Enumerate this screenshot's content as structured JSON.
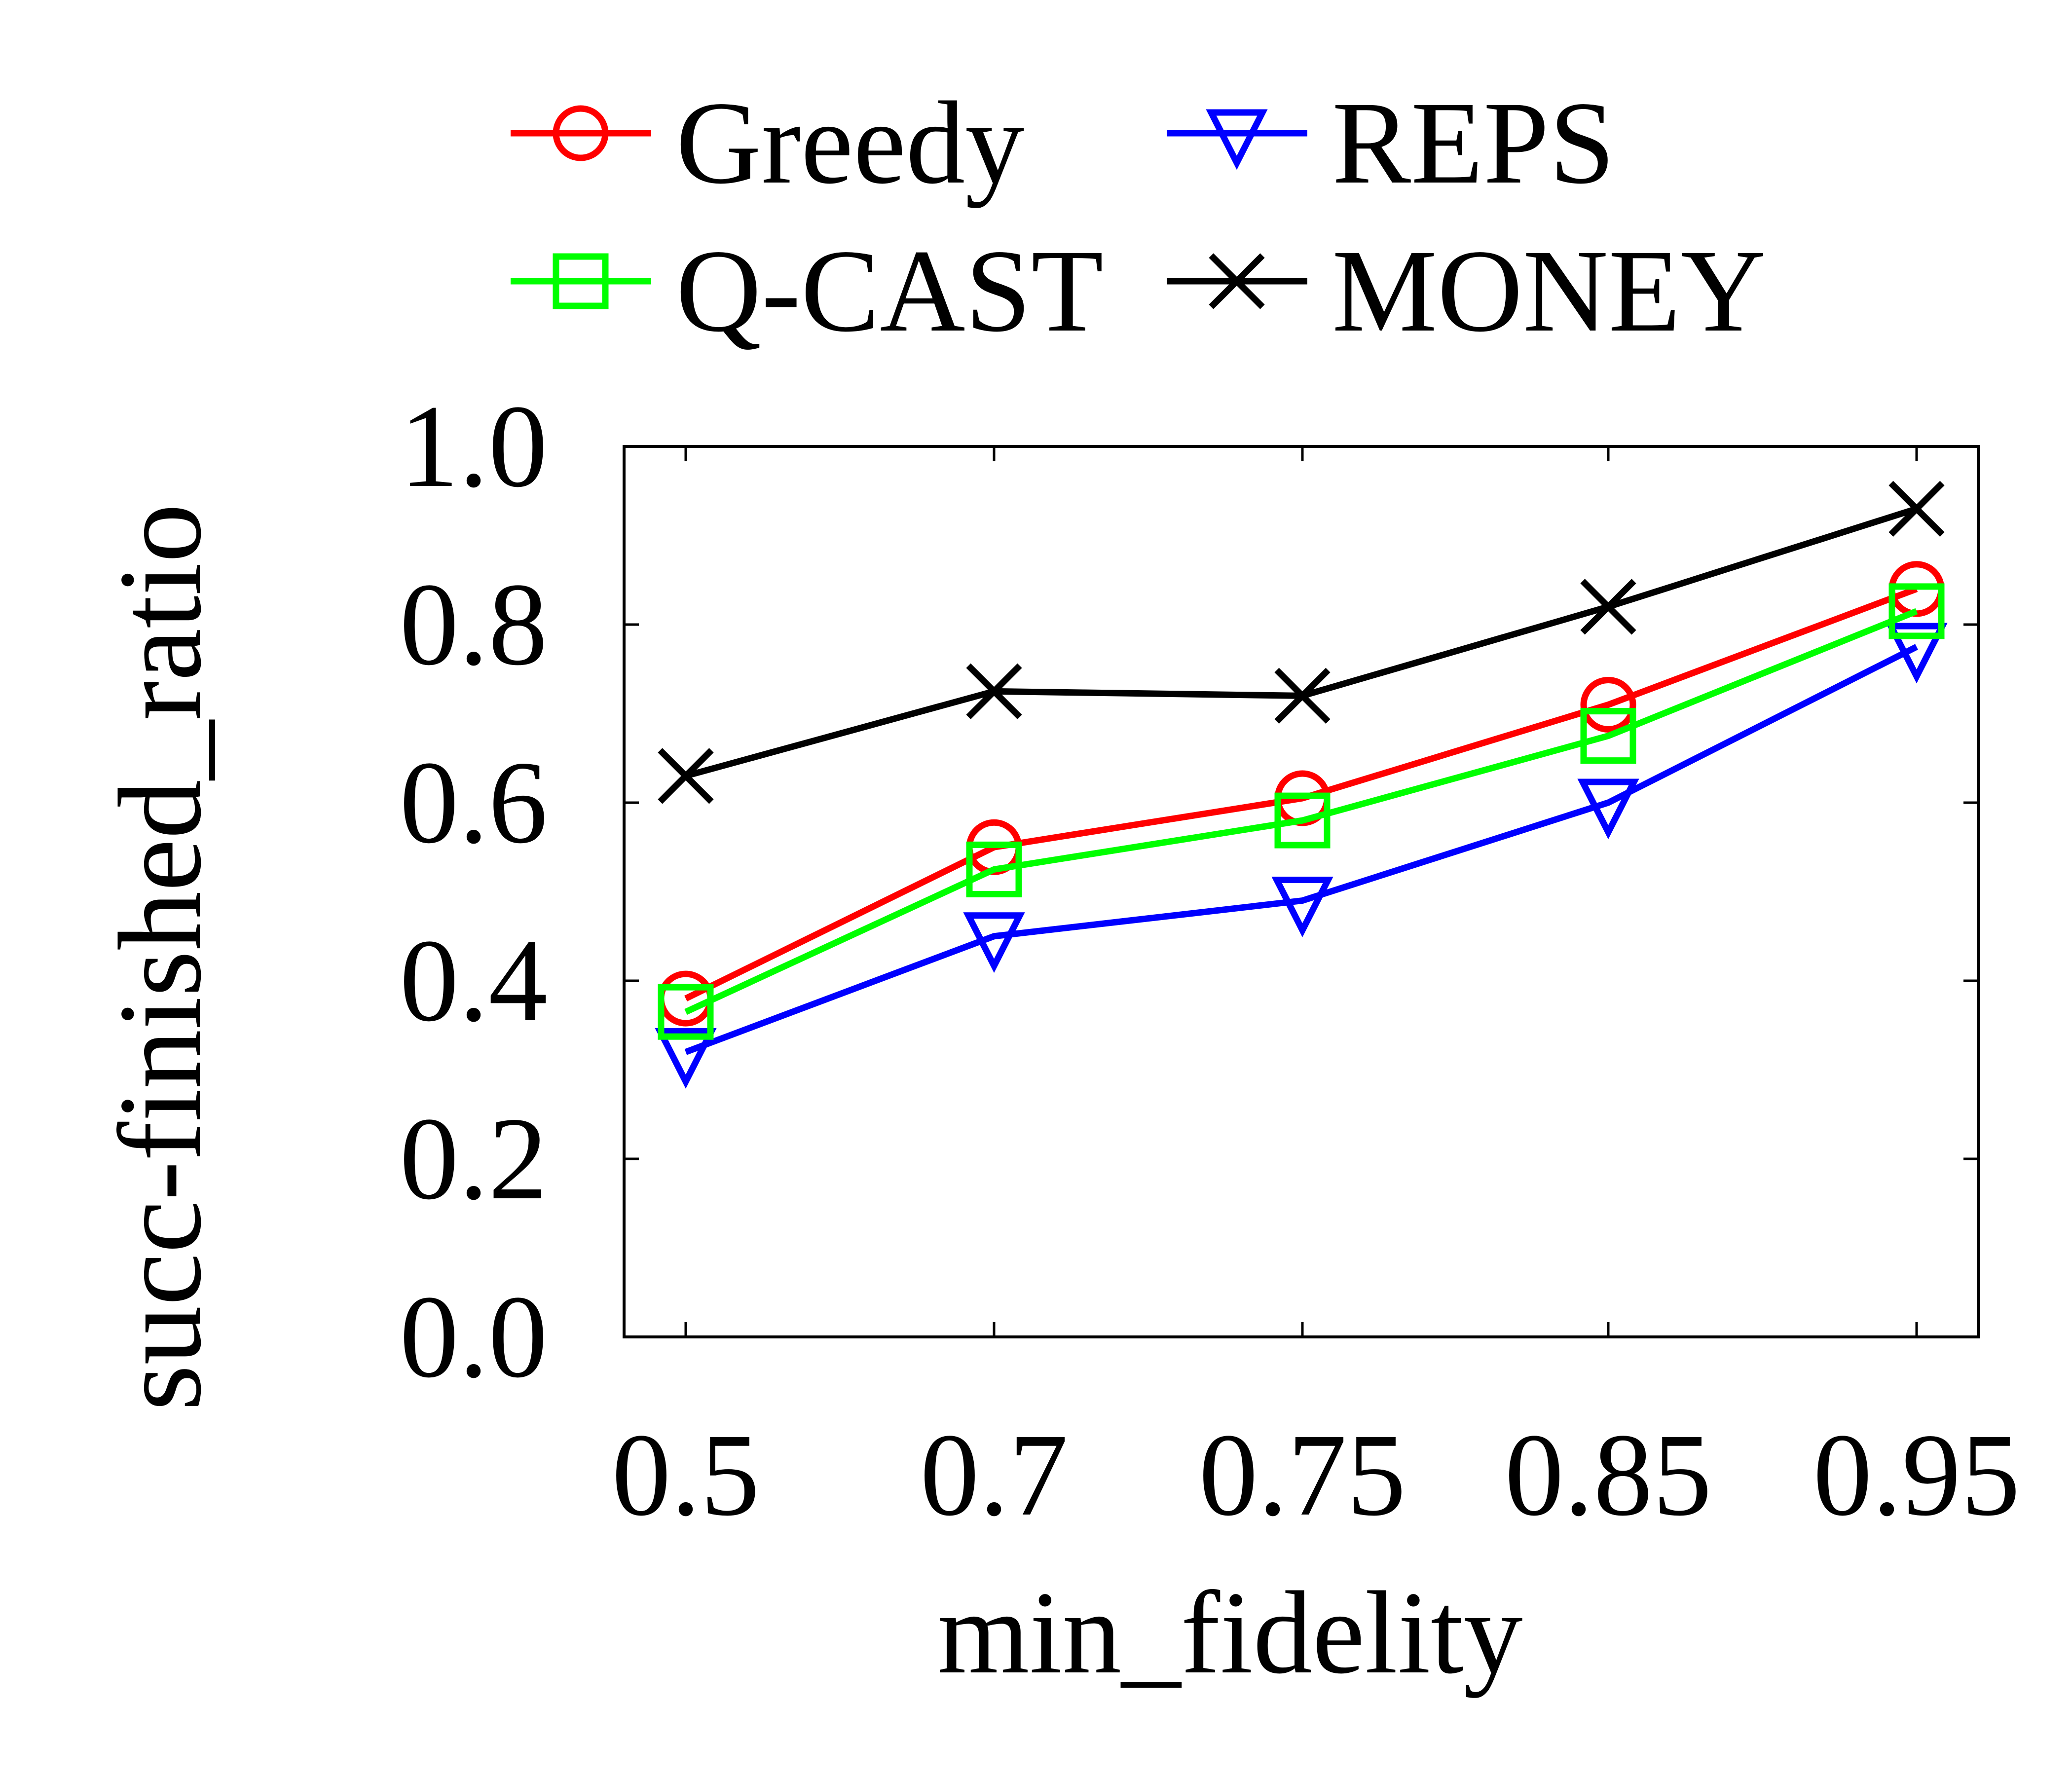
{
  "chart_data": {
    "type": "line",
    "xlabel": "min_fidelity",
    "ylabel": "succ-finished_ratio",
    "categories": [
      "0.5",
      "0.7",
      "0.75",
      "0.85",
      "0.95"
    ],
    "ylim": [
      0.0,
      1.0
    ],
    "yticks": [
      "0.0",
      "0.2",
      "0.4",
      "0.6",
      "0.8",
      "1.0"
    ],
    "grid": false,
    "legend_position": "top",
    "series": [
      {
        "name": "Greedy",
        "color": "#ff0000",
        "marker": "circle",
        "values": [
          0.38,
          0.55,
          0.605,
          0.71,
          0.84
        ]
      },
      {
        "name": "REPS",
        "color": "#0000ff",
        "marker": "triangle-down",
        "values": [
          0.32,
          0.45,
          0.49,
          0.6,
          0.775
        ]
      },
      {
        "name": "Q-CAST",
        "color": "#00ff00",
        "marker": "square",
        "values": [
          0.365,
          0.525,
          0.58,
          0.675,
          0.815
        ]
      },
      {
        "name": "MONEY",
        "color": "#000000",
        "marker": "x",
        "values": [
          0.63,
          0.725,
          0.72,
          0.82,
          0.93
        ]
      }
    ]
  }
}
